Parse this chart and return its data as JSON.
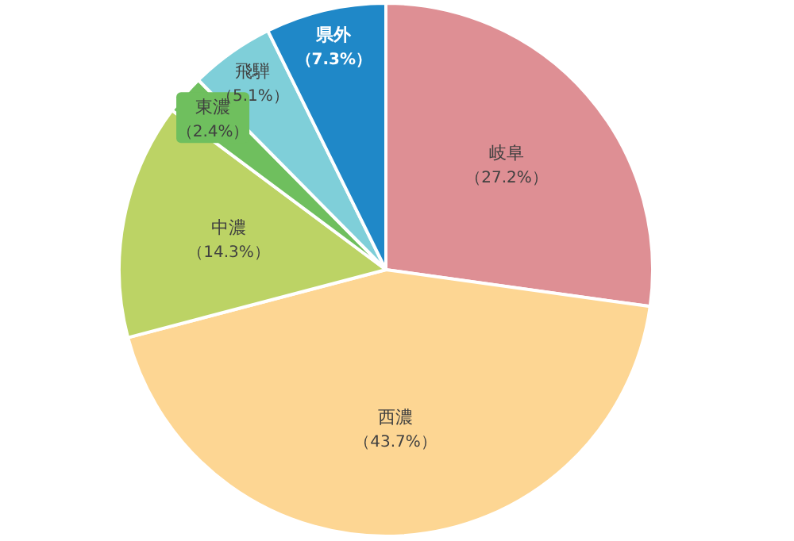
{
  "chart_data": {
    "type": "pie",
    "categories": [
      "岐阜",
      "西濃",
      "中濃",
      "東濃",
      "飛騨",
      "県外"
    ],
    "values": [
      27.2,
      43.7,
      14.3,
      2.4,
      5.1,
      7.3
    ],
    "colors": [
      "#de8f94",
      "#fdd693",
      "#bcd365",
      "#6fbf5e",
      "#7fcfd9",
      "#1f88c8"
    ],
    "value_labels": [
      "（27.2%）",
      "（43.7%）",
      "（14.3%）",
      "（2.4%）",
      "（5.1%）",
      "（7.3%）"
    ]
  }
}
